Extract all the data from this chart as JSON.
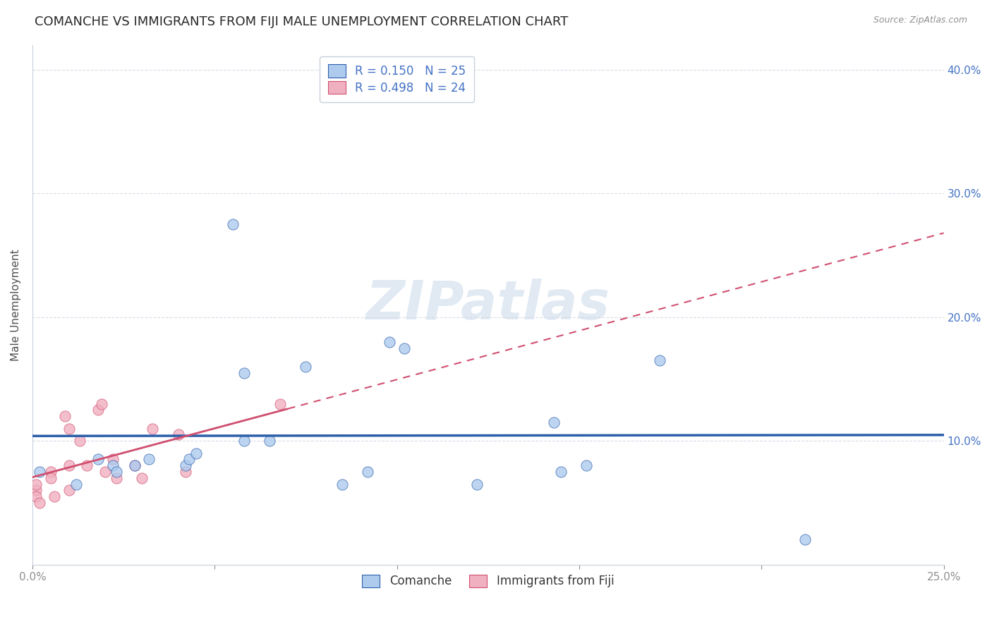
{
  "title": "COMANCHE VS IMMIGRANTS FROM FIJI MALE UNEMPLOYMENT CORRELATION CHART",
  "source": "Source: ZipAtlas.com",
  "ylabel": "Male Unemployment",
  "xlim": [
    0.0,
    0.25
  ],
  "ylim": [
    0.0,
    0.42
  ],
  "xticks": [
    0.0,
    0.05,
    0.1,
    0.15,
    0.2,
    0.25
  ],
  "yticks": [
    0.0,
    0.1,
    0.2,
    0.3,
    0.4
  ],
  "comanche_R": 0.15,
  "comanche_N": 25,
  "fiji_R": 0.498,
  "fiji_N": 24,
  "comanche_color": "#aecbee",
  "fiji_color": "#f0b0c0",
  "comanche_line_color": "#2c5faa",
  "fiji_line_color": "#d05070",
  "comanche_x": [
    0.002,
    0.012,
    0.018,
    0.022,
    0.023,
    0.028,
    0.032,
    0.042,
    0.043,
    0.045,
    0.055,
    0.058,
    0.058,
    0.065,
    0.075,
    0.085,
    0.092,
    0.098,
    0.102,
    0.122,
    0.143,
    0.145,
    0.152,
    0.172,
    0.212
  ],
  "comanche_y": [
    0.075,
    0.065,
    0.085,
    0.08,
    0.075,
    0.08,
    0.085,
    0.08,
    0.085,
    0.09,
    0.275,
    0.155,
    0.1,
    0.1,
    0.16,
    0.065,
    0.075,
    0.18,
    0.175,
    0.065,
    0.115,
    0.075,
    0.08,
    0.165,
    0.02
  ],
  "fiji_x": [
    0.001,
    0.001,
    0.001,
    0.002,
    0.005,
    0.005,
    0.006,
    0.009,
    0.01,
    0.01,
    0.01,
    0.013,
    0.015,
    0.018,
    0.019,
    0.02,
    0.022,
    0.023,
    0.028,
    0.03,
    0.033,
    0.04,
    0.042,
    0.068
  ],
  "fiji_y": [
    0.06,
    0.065,
    0.055,
    0.05,
    0.075,
    0.07,
    0.055,
    0.12,
    0.11,
    0.08,
    0.06,
    0.1,
    0.08,
    0.125,
    0.13,
    0.075,
    0.085,
    0.07,
    0.08,
    0.07,
    0.11,
    0.105,
    0.075,
    0.13
  ],
  "watermark_text": "ZIPatlas",
  "background_color": "#ffffff",
  "grid_color": "#d8dde8",
  "title_fontsize": 13,
  "label_fontsize": 11,
  "tick_fontsize": 11,
  "legend_fontsize": 12,
  "scatter_size": 120
}
